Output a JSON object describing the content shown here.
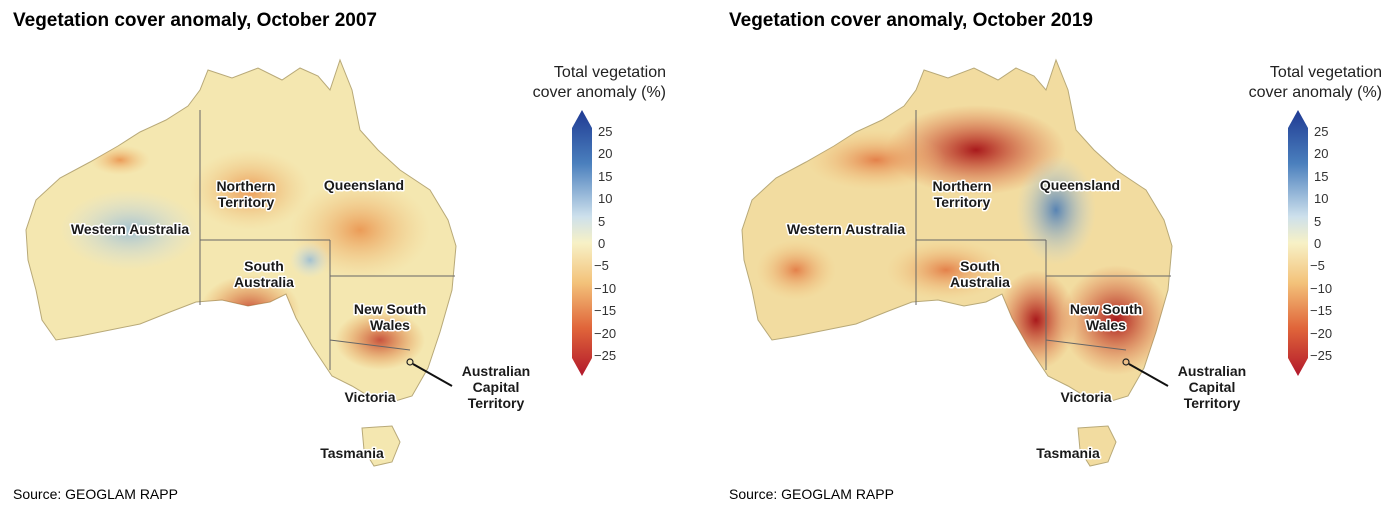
{
  "maps": [
    {
      "title": "Vegetation cover anomaly, October 2007",
      "source": "Source: GEOGLAM RAPP",
      "legend_title_line1": "Total vegetation",
      "legend_title_line2": "cover anomaly (%)",
      "legend_ticks": [
        "25",
        "20",
        "15",
        "10",
        "5",
        "0",
        "−5",
        "−10",
        "−15",
        "−20",
        "−25"
      ],
      "regions": {
        "western_australia": "Western Australia",
        "northern_territory_1": "Northern",
        "northern_territory_2": "Territory",
        "queensland": "Queensland",
        "south_australia_1": "South",
        "south_australia_2": "Australia",
        "new_south_wales_1": "New South",
        "new_south_wales_2": "Wales",
        "victoria": "Victoria",
        "tasmania": "Tasmania",
        "act_1": "Australian",
        "act_2": "Capital",
        "act_3": "Territory"
      }
    },
    {
      "title": "Vegetation cover anomaly, October 2019",
      "source": "Source: GEOGLAM RAPP",
      "legend_title_line1": "Total vegetation",
      "legend_title_line2": "cover anomaly (%)",
      "legend_ticks": [
        "25",
        "20",
        "15",
        "10",
        "5",
        "0",
        "−5",
        "−10",
        "−15",
        "−20",
        "−25"
      ],
      "regions": {
        "western_australia": "Western Australia",
        "northern_territory_1": "Northern",
        "northern_territory_2": "Territory",
        "queensland": "Queensland",
        "south_australia_1": "South",
        "south_australia_2": "Australia",
        "new_south_wales_1": "New South",
        "new_south_wales_2": "Wales",
        "victoria": "Victoria",
        "tasmania": "Tasmania",
        "act_1": "Australian",
        "act_2": "Capital",
        "act_3": "Territory"
      }
    }
  ],
  "colors": {
    "scale_top": "#1f3a93",
    "scale_mid": "#f7f1c6",
    "scale_bottom": "#b2182b",
    "land_base": "#f4e7b0"
  }
}
